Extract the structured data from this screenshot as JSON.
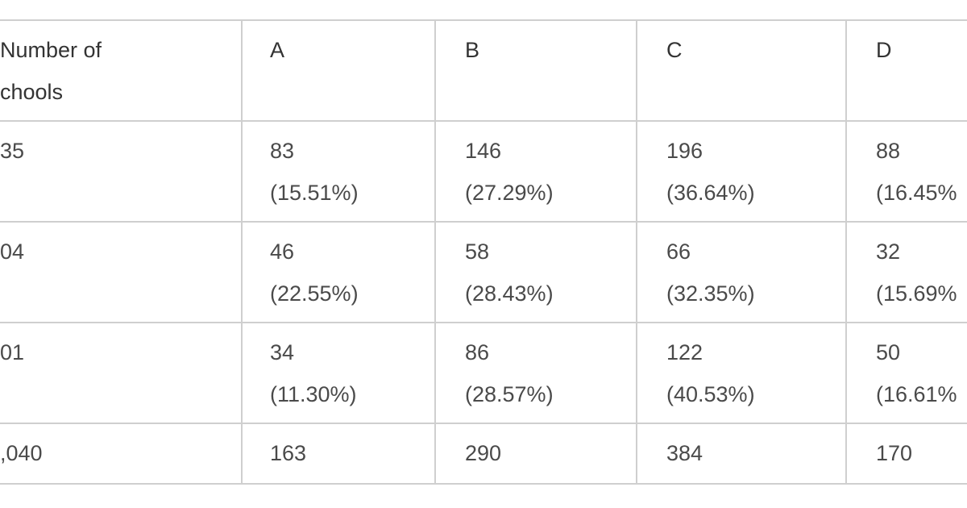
{
  "table": {
    "header": [
      [
        "Number of",
        "chools"
      ],
      [
        "A"
      ],
      [
        "B"
      ],
      [
        "C"
      ],
      [
        "D"
      ]
    ],
    "rows": [
      [
        [
          "35"
        ],
        [
          "83",
          "(15.51%)"
        ],
        [
          "146",
          "(27.29%)"
        ],
        [
          "196",
          "(36.64%)"
        ],
        [
          "88",
          "(16.45%"
        ]
      ],
      [
        [
          "04"
        ],
        [
          "46",
          "(22.55%)"
        ],
        [
          "58",
          "(28.43%)"
        ],
        [
          "66",
          "(32.35%)"
        ],
        [
          "32",
          "(15.69%"
        ]
      ],
      [
        [
          "01"
        ],
        [
          "34",
          "(11.30%)"
        ],
        [
          "86",
          "(28.57%)"
        ],
        [
          "122",
          "(40.53%)"
        ],
        [
          "50",
          "(16.61%"
        ]
      ],
      [
        [
          ",040"
        ],
        [
          "163"
        ],
        [
          "290"
        ],
        [
          "384"
        ],
        [
          "170"
        ]
      ]
    ]
  }
}
